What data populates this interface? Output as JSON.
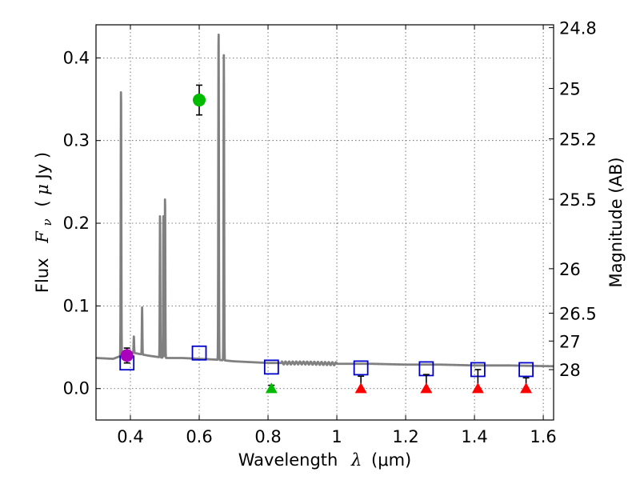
{
  "chart_data": {
    "type": "scatter",
    "title": "",
    "xlabel": "Wavelength  λ (μm)",
    "xlabel_parts": {
      "word": "Wavelength",
      "symbol": "λ",
      "unit": "(μm)"
    },
    "ylabel": "Flux  F_ν  ( μJy )",
    "ylabel_parts": {
      "word": "Flux",
      "symbol": "F",
      "subscript": "ν",
      "unit_open": "( ",
      "unit_mu": "μ",
      "unit_text": "Jy )"
    },
    "y2label": "Magnitude (AB)",
    "xlim": [
      0.3,
      1.63
    ],
    "ylim": [
      -0.038,
      0.44
    ],
    "grid": true,
    "xticks": [
      0.4,
      0.6,
      0.8,
      1.0,
      1.2,
      1.4,
      1.6
    ],
    "xtick_labels": [
      "0.4",
      "0.6",
      "0.8",
      "1",
      "1.2",
      "1.4",
      "1.6"
    ],
    "yticks": [
      0.0,
      0.1,
      0.2,
      0.3,
      0.4
    ],
    "ytick_labels": [
      "0.0",
      "0.1",
      "0.2",
      "0.3",
      "0.4"
    ],
    "y2ticks": [
      {
        "flux": 0.4365,
        "label": "24.8"
      },
      {
        "flux": 0.363,
        "label": "25"
      },
      {
        "flux": 0.302,
        "label": "25.2"
      },
      {
        "flux": 0.229,
        "label": "25.5"
      },
      {
        "flux": 0.145,
        "label": "26"
      },
      {
        "flux": 0.0912,
        "label": "26.5"
      },
      {
        "flux": 0.0575,
        "label": "27"
      },
      {
        "flux": 0.0229,
        "label": "28"
      }
    ],
    "colors": {
      "model": "#808080",
      "photometry_model": "#0000cc",
      "green": "#00bb00",
      "purple": "#aa00bb",
      "red": "#ff0000",
      "errorbar": "#000000",
      "grid": "#555555"
    },
    "model_spectrum": {
      "name": "Model SED",
      "continuum": [
        [
          0.3,
          0.037
        ],
        [
          0.35,
          0.036
        ],
        [
          0.4,
          0.044
        ],
        [
          0.45,
          0.04
        ],
        [
          0.5,
          0.037
        ],
        [
          0.55,
          0.037
        ],
        [
          0.6,
          0.036
        ],
        [
          0.65,
          0.035
        ],
        [
          0.7,
          0.033
        ],
        [
          0.75,
          0.032
        ],
        [
          0.8,
          0.031
        ],
        [
          0.9,
          0.031
        ],
        [
          1.0,
          0.03
        ],
        [
          1.1,
          0.03
        ],
        [
          1.2,
          0.029
        ],
        [
          1.3,
          0.029
        ],
        [
          1.4,
          0.028
        ],
        [
          1.5,
          0.028
        ],
        [
          1.63,
          0.027
        ]
      ],
      "emission_lines": [
        {
          "wave": 0.3727,
          "peak": 0.368,
          "width": 0.0018
        },
        {
          "wave": 0.41,
          "peak": 0.063,
          "width": 0.0016
        },
        {
          "wave": 0.434,
          "peak": 0.098,
          "width": 0.0016
        },
        {
          "wave": 0.4861,
          "peak": 0.21,
          "width": 0.0016
        },
        {
          "wave": 0.4959,
          "peak": 0.21,
          "width": 0.0016
        },
        {
          "wave": 0.5007,
          "peak": 0.236,
          "width": 0.0016
        },
        {
          "wave": 0.6563,
          "peak": 0.44,
          "width": 0.0018
        },
        {
          "wave": 0.6716,
          "peak": 0.406,
          "width": 0.0018
        }
      ]
    },
    "model_photometry": {
      "name": "Model photometry",
      "marker": "open-square",
      "points": [
        {
          "x": 0.39,
          "y": 0.031
        },
        {
          "x": 0.6,
          "y": 0.043
        },
        {
          "x": 0.81,
          "y": 0.026
        },
        {
          "x": 1.07,
          "y": 0.025
        },
        {
          "x": 1.26,
          "y": 0.024
        },
        {
          "x": 1.41,
          "y": 0.023
        },
        {
          "x": 1.55,
          "y": 0.023
        }
      ]
    },
    "detections": [
      {
        "name": "Purple detection",
        "x": 0.39,
        "y": 0.04,
        "err": 0.009,
        "color": "purple"
      },
      {
        "name": "Green detection",
        "x": 0.6,
        "y": 0.349,
        "err": 0.018,
        "color": "green"
      }
    ],
    "upper_limits": [
      {
        "x": 0.81,
        "y": 0.0,
        "err_up": 0.004,
        "color": "green"
      },
      {
        "x": 1.07,
        "y": 0.0,
        "err_up": 0.015,
        "color": "red"
      },
      {
        "x": 1.26,
        "y": 0.0,
        "err_up": 0.017,
        "color": "red"
      },
      {
        "x": 1.41,
        "y": 0.0,
        "err_up": 0.023,
        "color": "red"
      },
      {
        "x": 1.55,
        "y": 0.0,
        "err_up": 0.013,
        "color": "red"
      }
    ]
  }
}
